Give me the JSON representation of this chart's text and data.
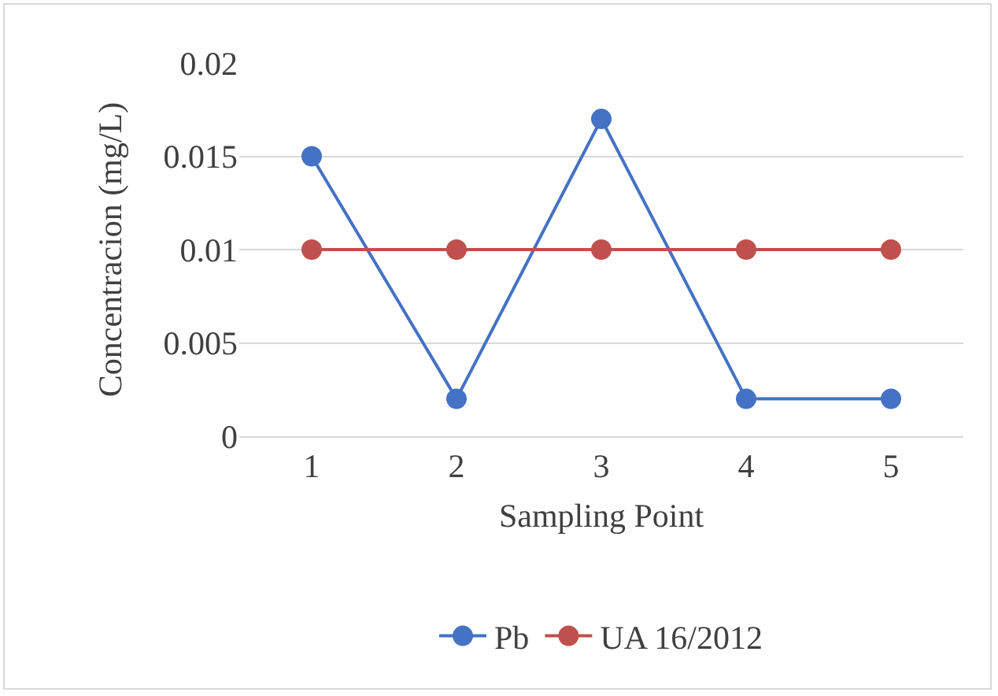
{
  "chart_data": {
    "type": "line",
    "xlabel": "Sampling Point",
    "ylabel": "Concentracion (mg/L)",
    "categories": [
      "1",
      "2",
      "3",
      "4",
      "5"
    ],
    "series": [
      {
        "name": "Pb",
        "color": "#4472c4",
        "values": [
          0.015,
          0.002,
          0.017,
          0.002,
          0.002
        ]
      },
      {
        "name": "UA 16/2012",
        "color": "#c0504d",
        "values": [
          0.01,
          0.01,
          0.01,
          0.01,
          0.01
        ]
      }
    ],
    "ylim": [
      0,
      0.02
    ],
    "yticks": [
      0,
      0.005,
      0.01,
      0.015,
      0.02
    ],
    "grid": "y",
    "legend": "bottom",
    "marker": "circle"
  }
}
